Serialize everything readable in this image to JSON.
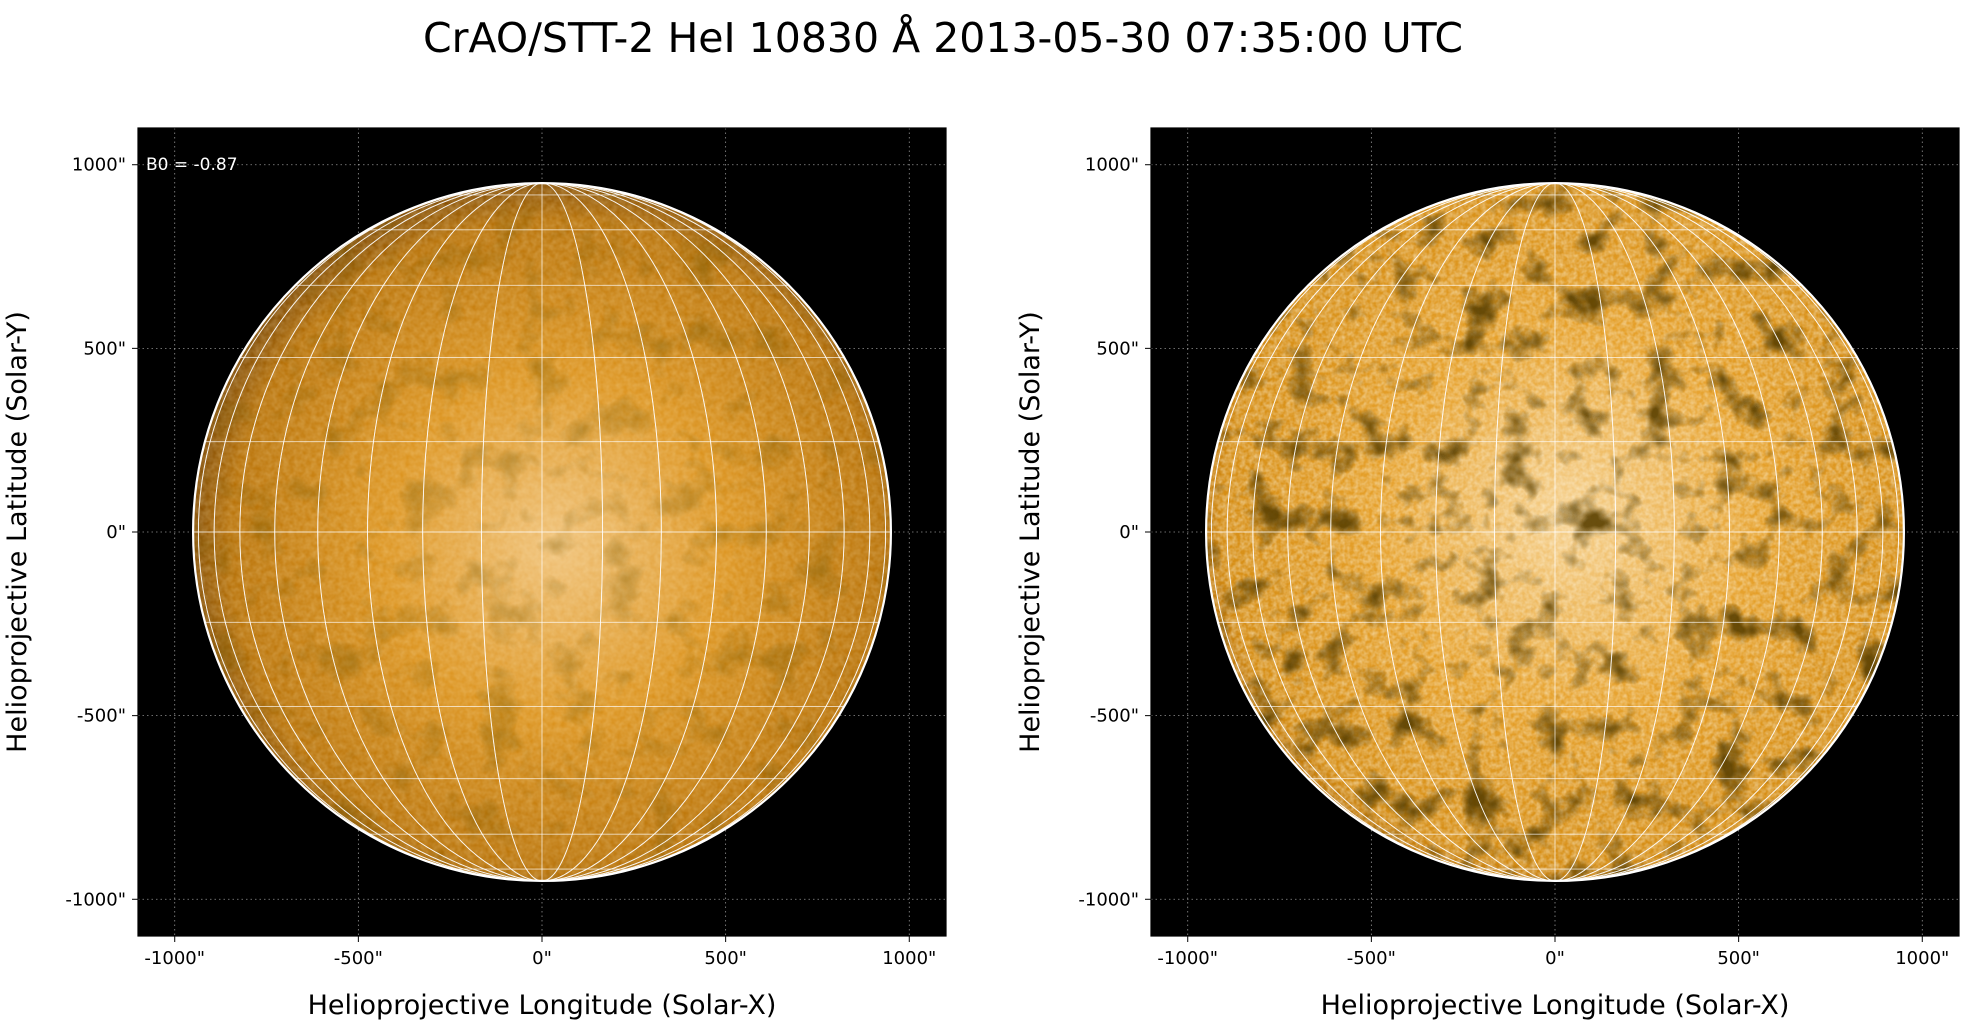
{
  "figure": {
    "title": "CrAO/STT-2 HeI 10830 Å 2013-05-30 07:35:00 UTC"
  },
  "panels": [
    {
      "xlabel": "Helioprojective Longitude (Solar-X)",
      "ylabel": "Helioprojective Latitude (Solar-Y)",
      "x_ticks": [
        "-1000\"",
        "-500\"",
        "0\"",
        "500\"",
        "1000\""
      ],
      "y_ticks": [
        "1000\"",
        "500\"",
        "0\"",
        "-500\"",
        "-1000\""
      ],
      "annotation": "B0 = -0.87",
      "style": "normal"
    },
    {
      "xlabel": "Helioprojective Longitude (Solar-X)",
      "ylabel": "Helioprojective Latitude (Solar-Y)",
      "x_ticks": [
        "-1000\"",
        "-500\"",
        "0\"",
        "500\"",
        "1000\""
      ],
      "y_ticks": [
        "1000\"",
        "500\"",
        "0\"",
        "-500\"",
        "-1000\""
      ],
      "annotation": "",
      "style": "enhanced"
    }
  ],
  "colors": {
    "disk_center": "#f2c274",
    "disk_mid": "#d68a14",
    "disk_limb": "#6e3f05",
    "background": "#000000",
    "grid": "#ffffff"
  }
}
